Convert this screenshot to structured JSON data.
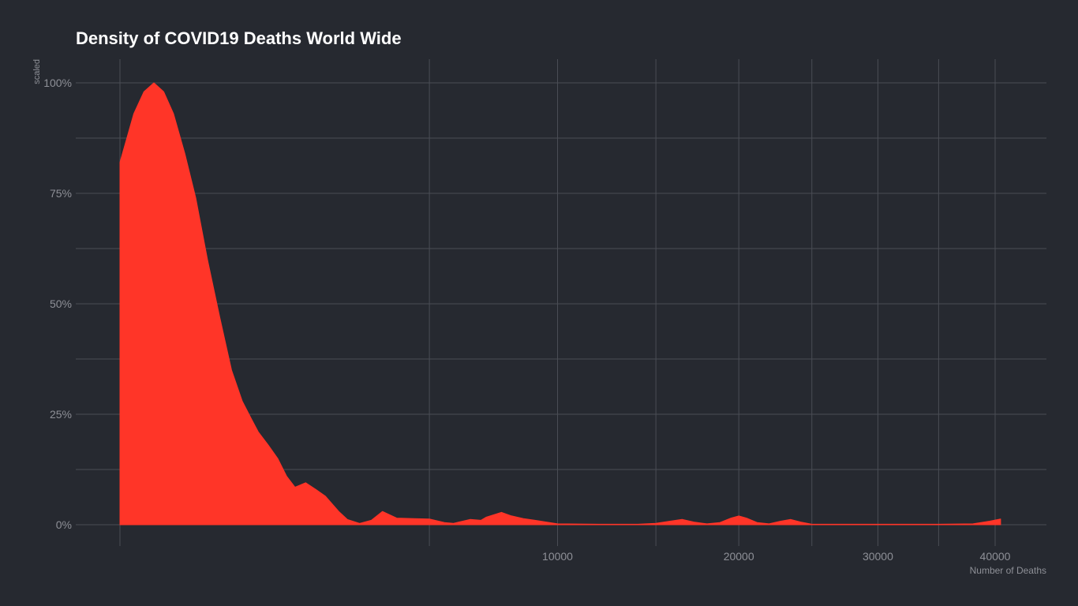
{
  "chart_data": {
    "type": "area",
    "title": "Density of COVID19 Deaths World Wide",
    "xlabel": "Number of Deaths",
    "ylabel": "scaled",
    "x_scale": "sqrt",
    "xlim": [
      0,
      45000
    ],
    "ylim": [
      0,
      1
    ],
    "x_ticks": [
      10000,
      20000,
      30000,
      40000
    ],
    "x_tick_labels": [
      "10000",
      "20000",
      "30000",
      "40000"
    ],
    "y_ticks": [
      0,
      0.25,
      0.5,
      0.75,
      1
    ],
    "y_tick_labels": [
      "0%",
      "25%",
      "50%",
      "75%",
      "100%"
    ],
    "grid": true,
    "fill_color": "#ff3528",
    "background_color": "#262930",
    "grid_color": "#4a4d55",
    "series": [
      {
        "x": [
          0,
          10,
          30,
          60,
          100,
          150,
          220,
          300,
          400,
          520,
          650,
          780,
          900,
          1000,
          1150,
          1300,
          1450,
          1600,
          1800,
          2000,
          2200,
          2500,
          2700,
          3000,
          3300,
          3600,
          4000,
          4500,
          5000,
          5500,
          5800,
          6000,
          6400,
          6800,
          7000,
          7600,
          8000,
          8500,
          9000,
          10000,
          12000,
          14000,
          15000,
          15800,
          16500,
          17200,
          18000,
          18800,
          19500,
          20000,
          20500,
          21200,
          22000,
          22800,
          23500,
          24200,
          25000,
          27000,
          30000,
          33000,
          35000,
          38000,
          39500,
          40500
        ],
        "y": [
          0.82,
          0.93,
          0.98,
          1.0,
          0.98,
          0.93,
          0.84,
          0.74,
          0.6,
          0.47,
          0.35,
          0.28,
          0.24,
          0.21,
          0.18,
          0.15,
          0.11,
          0.085,
          0.095,
          0.08,
          0.065,
          0.03,
          0.012,
          0.003,
          0.01,
          0.03,
          0.015,
          0.014,
          0.013,
          0.005,
          0.003,
          0.006,
          0.012,
          0.01,
          0.017,
          0.028,
          0.02,
          0.014,
          0.01,
          0.002,
          0.001,
          0.001,
          0.003,
          0.008,
          0.012,
          0.006,
          0.002,
          0.005,
          0.015,
          0.02,
          0.015,
          0.005,
          0.002,
          0.008,
          0.012,
          0.006,
          0.001,
          0.001,
          0.001,
          0.001,
          0.001,
          0.002,
          0.008,
          0.013
        ]
      }
    ]
  }
}
